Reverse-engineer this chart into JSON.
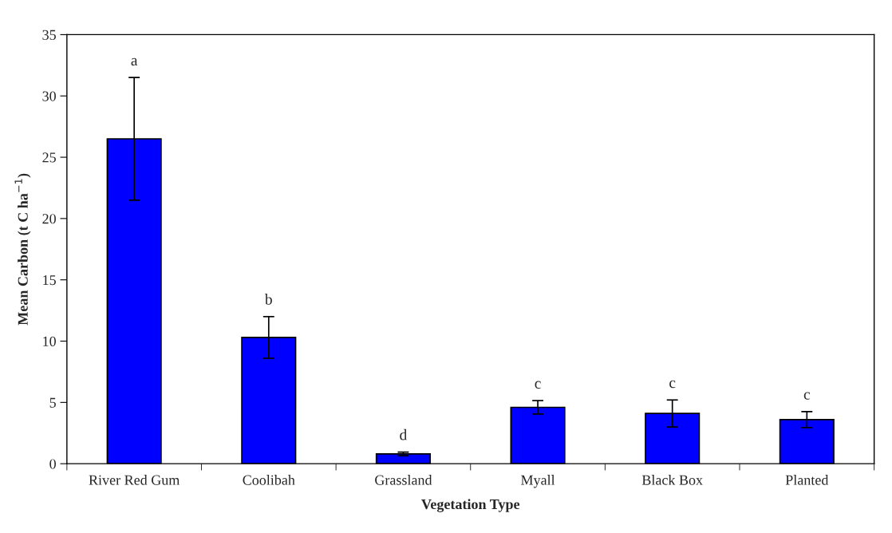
{
  "chart_data": {
    "type": "bar",
    "xlabel": "Vegetation Type",
    "ylabel": "Mean Carbon (t C ha$^{−1}$)",
    "categories": [
      "River Red Gum",
      "Coolibah",
      "Grassland",
      "Myall",
      "Black Box",
      "Planted"
    ],
    "values": [
      26.5,
      10.3,
      0.8,
      4.6,
      4.1,
      3.6
    ],
    "errors": [
      5.0,
      1.7,
      0.15,
      0.55,
      1.1,
      0.65
    ],
    "color": "#0000ff",
    "ylim": [
      0,
      35
    ],
    "yticks": [
      0,
      5,
      10,
      15,
      20,
      25,
      30,
      35
    ],
    "annotations": [
      {
        "text": "a",
        "x": "River Red Gum",
        "y": 31.5
      },
      {
        "text": "b",
        "x": "Coolibah",
        "y": 12.0
      },
      {
        "text": "d",
        "x": "Grassland",
        "y": 0.95
      },
      {
        "text": "c",
        "x": "Myall",
        "y": 5.15
      },
      {
        "text": "c",
        "x": "Black Box",
        "y": 5.2
      },
      {
        "text": "c",
        "x": "Planted",
        "y": 4.25
      }
    ]
  }
}
